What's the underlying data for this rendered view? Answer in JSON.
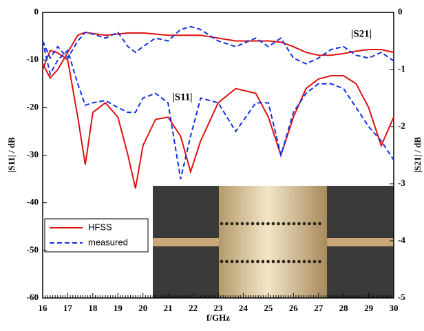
{
  "chart_data": {
    "type": "line",
    "xlabel": "f/GHz",
    "ylabel": "|S11|  / dB",
    "y2label": "|S21|  / dB",
    "annotations": [
      "|S21|",
      "|S11|"
    ],
    "x": [
      16,
      16.3,
      16.6,
      17,
      17.4,
      17.7,
      18,
      18.5,
      19,
      19.4,
      19.7,
      20,
      20.5,
      21,
      21.5,
      21.9,
      22.3,
      23,
      23.7,
      24.5,
      25,
      25.5,
      26,
      26.5,
      27,
      27.5,
      28,
      28.5,
      29,
      29.5,
      30
    ],
    "xlim": [
      16,
      30
    ],
    "xticks": [
      16,
      17,
      18,
      19,
      20,
      21,
      22,
      23,
      24,
      25,
      26,
      27,
      28,
      29,
      30
    ],
    "ylim": [
      -60,
      0
    ],
    "yticks": [
      0,
      -10,
      -20,
      -30,
      -40,
      -50,
      -60
    ],
    "y2lim": [
      -5,
      0
    ],
    "y2ticks": [
      0,
      -1,
      -2,
      -3,
      -4,
      -5
    ],
    "series": [
      {
        "name": "HFSS",
        "color": "#e01010",
        "dash": false,
        "values": [
          -12,
          -8,
          -8.5,
          -10,
          -22,
          -32,
          -21,
          -19,
          -22,
          -30,
          -37,
          -28,
          -22.5,
          -22,
          -26,
          -33.5,
          -27,
          -19,
          -16,
          -17,
          -22,
          -30,
          -22,
          -16,
          -14,
          -13.3,
          -13.3,
          -15,
          -20,
          -28,
          -22
        ],
        "values_y2": [
          -0.9,
          -1.15,
          -1.0,
          -0.7,
          -0.4,
          -0.35,
          -0.37,
          -0.4,
          -0.38,
          -0.36,
          -0.36,
          -0.36,
          -0.38,
          -0.4,
          -0.4,
          -0.4,
          -0.4,
          -0.45,
          -0.5,
          -0.5,
          -0.5,
          -0.52,
          -0.6,
          -0.7,
          -0.75,
          -0.75,
          -0.72,
          -0.68,
          -0.65,
          -0.65,
          -0.7
        ]
      },
      {
        "name": "measured",
        "color": "#1030e0",
        "dash": true,
        "values": [
          -6,
          -13,
          -10,
          -8,
          -15,
          -19.5,
          -19,
          -18.5,
          -20,
          -21,
          -21,
          -18,
          -17,
          -19,
          -35,
          -26,
          -18,
          -19,
          -25,
          -19,
          -19,
          -30,
          -21,
          -17,
          -15,
          -15,
          -16,
          -20,
          -24,
          -27,
          -31
        ],
        "values_y2": [
          -0.5,
          -0.8,
          -0.6,
          -0.8,
          -0.5,
          -0.35,
          -0.38,
          -0.45,
          -0.35,
          -0.6,
          -0.7,
          -0.6,
          -0.45,
          -0.5,
          -0.3,
          -0.25,
          -0.3,
          -0.5,
          -0.6,
          -0.45,
          -0.6,
          -0.45,
          -0.8,
          -0.9,
          -0.8,
          -0.65,
          -0.6,
          -0.75,
          -0.8,
          -0.7,
          -0.85
        ]
      }
    ]
  }
}
